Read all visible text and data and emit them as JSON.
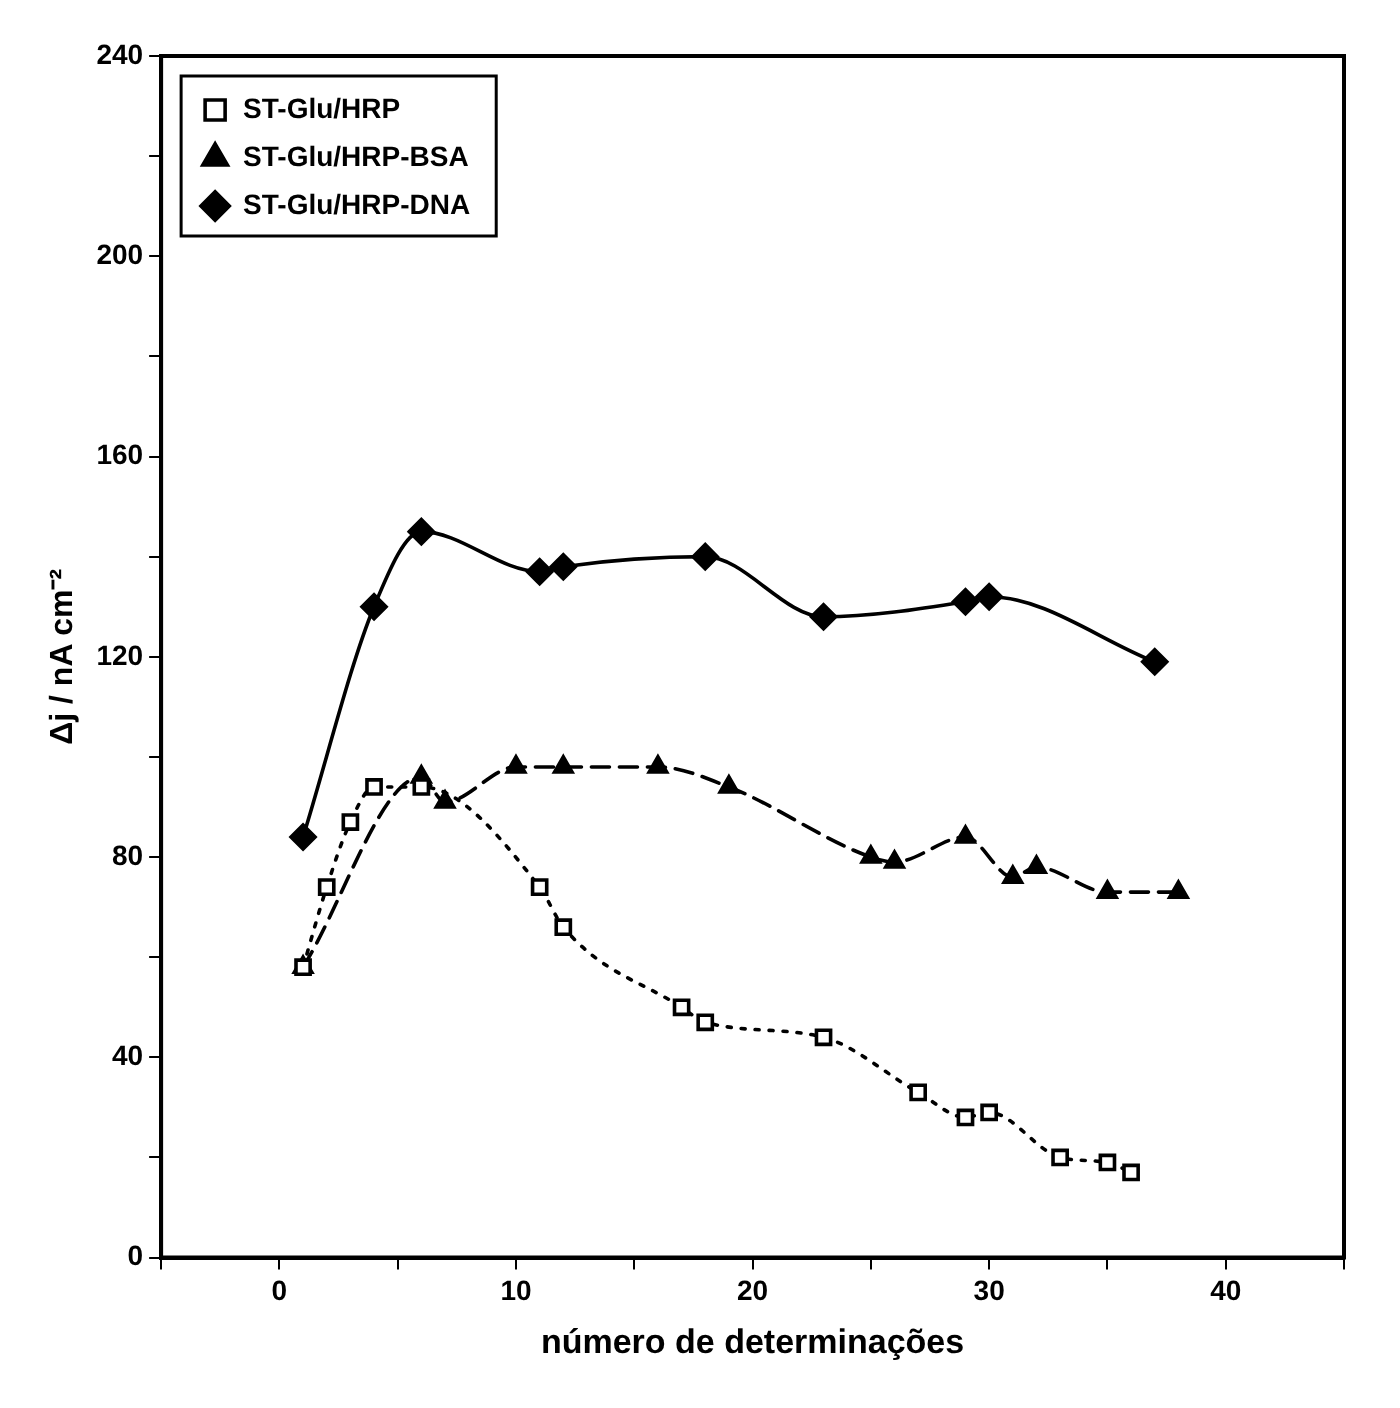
{
  "chart_data": {
    "type": "line",
    "xlabel": "número de determinações",
    "ylabel": "Δj / nA cm⁻²",
    "xlim": [
      -5,
      45
    ],
    "xticks": [
      {
        "value": -5,
        "label": null
      },
      0,
      {
        "value": 5,
        "label": null
      },
      10,
      {
        "value": 15,
        "label": null
      },
      20,
      {
        "value": 25,
        "label": null
      },
      30,
      {
        "value": 35,
        "label": null
      },
      40,
      {
        "value": 45,
        "label": null
      }
    ],
    "ylim": [
      0,
      240
    ],
    "yticks": [
      0,
      {
        "value": 20,
        "label": null
      },
      40,
      {
        "value": 60,
        "label": null
      },
      80,
      {
        "value": 100,
        "label": null
      },
      120,
      {
        "value": 140,
        "label": null
      },
      160,
      {
        "value": 180,
        "label": null
      },
      200,
      {
        "value": 220,
        "label": null
      },
      240
    ],
    "grid": false,
    "legend": "top left",
    "series": [
      {
        "name": "ST-Glu/HRP",
        "color": "#000000",
        "marker": "square",
        "line_style": "dotted",
        "x": [
          1,
          2,
          3,
          4,
          6,
          11,
          12,
          17,
          18,
          23,
          27,
          29,
          30,
          33,
          35,
          36
        ],
        "values": [
          58,
          74,
          87,
          94,
          94,
          74,
          66,
          50,
          47,
          44,
          33,
          28,
          29,
          20,
          19,
          17
        ]
      },
      {
        "name": "ST-Glu/HRP-BSA",
        "color": "#000000",
        "marker": "triangle",
        "line_style": "dashed",
        "x": [
          1,
          6,
          7,
          10,
          12,
          16,
          19,
          25,
          26,
          29,
          31,
          32,
          35,
          38
        ],
        "values": [
          58,
          96,
          91,
          98,
          98,
          98,
          94,
          80,
          79,
          84,
          76,
          78,
          73,
          73
        ]
      },
      {
        "name": "ST-Glu/HRP-DNA",
        "color": "#000000",
        "marker": "diamond",
        "line_style": "solid",
        "x": [
          1,
          4,
          6,
          11,
          12,
          18,
          23,
          29,
          30,
          37
        ],
        "values": [
          84,
          130,
          145,
          137,
          138,
          140,
          128,
          131,
          132,
          119
        ]
      }
    ]
  }
}
